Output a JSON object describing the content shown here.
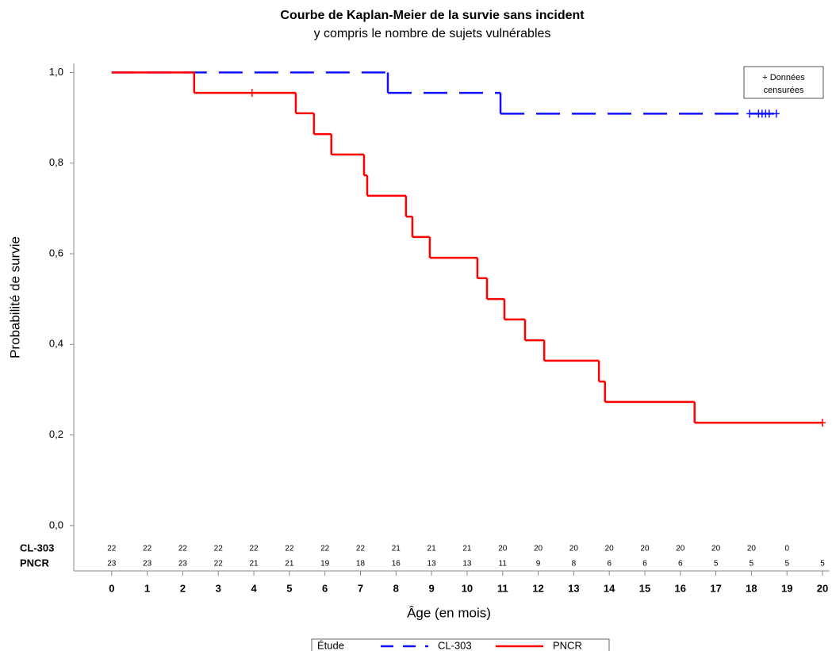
{
  "chart_data": {
    "type": "kaplan-meier",
    "title": "Courbe de Kaplan-Meier de la survie sans incident",
    "subtitle": "y compris le nombre de sujets vulnérables",
    "xlabel": "Âge (en mois)",
    "ylabel": "Probabilité de survie",
    "xlim": [
      -1,
      20.2
    ],
    "ylim": [
      -0.1,
      1.02
    ],
    "xticks": [
      0,
      1,
      2,
      3,
      4,
      5,
      6,
      7,
      8,
      9,
      10,
      11,
      12,
      13,
      14,
      15,
      16,
      17,
      18,
      19,
      20
    ],
    "yticks": [
      {
        "value": 0,
        "label": "0,0"
      },
      {
        "value": 0.2,
        "label": "0,2"
      },
      {
        "value": 0.4,
        "label": "0,4"
      },
      {
        "value": 0.6,
        "label": "0,6"
      },
      {
        "value": 0.8,
        "label": "0,8"
      },
      {
        "value": 1,
        "label": "1,0"
      }
    ],
    "series": [
      {
        "name": "CL-303",
        "color": "#1010ff",
        "dashed": true,
        "x": [
          0,
          7.77,
          10.94,
          18.8
        ],
        "values": [
          1,
          0.955,
          0.909,
          0.909
        ],
        "censored": [
          17.95,
          18.2,
          18.3,
          18.4,
          18.5,
          18.7
        ]
      },
      {
        "name": "PNCR",
        "color": "#ff0000",
        "dashed": false,
        "x": [
          0,
          2.32,
          5.18,
          5.69,
          6.18,
          7.1,
          7.19,
          8.28,
          8.46,
          8.95,
          10.29,
          10.56,
          11.05,
          11.63,
          12.17,
          13.71,
          13.88,
          16.4,
          20
        ],
        "values": [
          1,
          0.955,
          0.91,
          0.864,
          0.819,
          0.773,
          0.728,
          0.682,
          0.637,
          0.591,
          0.546,
          0.5,
          0.455,
          0.409,
          0.364,
          0.318,
          0.273,
          0.227,
          0.227
        ],
        "censored": [
          3.95,
          20
        ]
      }
    ],
    "at_risk": [
      [
        22,
        22,
        22,
        22,
        22,
        22,
        22,
        22,
        21,
        21,
        21,
        20,
        20,
        20,
        20,
        20,
        20,
        20,
        20,
        0,
        null
      ],
      [
        23,
        23,
        23,
        22,
        21,
        21,
        19,
        18,
        16,
        13,
        13,
        11,
        9,
        8,
        6,
        6,
        6,
        5,
        5,
        5,
        5
      ]
    ],
    "legend_title": "Étude",
    "censor_note": [
      "+ Données",
      "censurées"
    ]
  }
}
